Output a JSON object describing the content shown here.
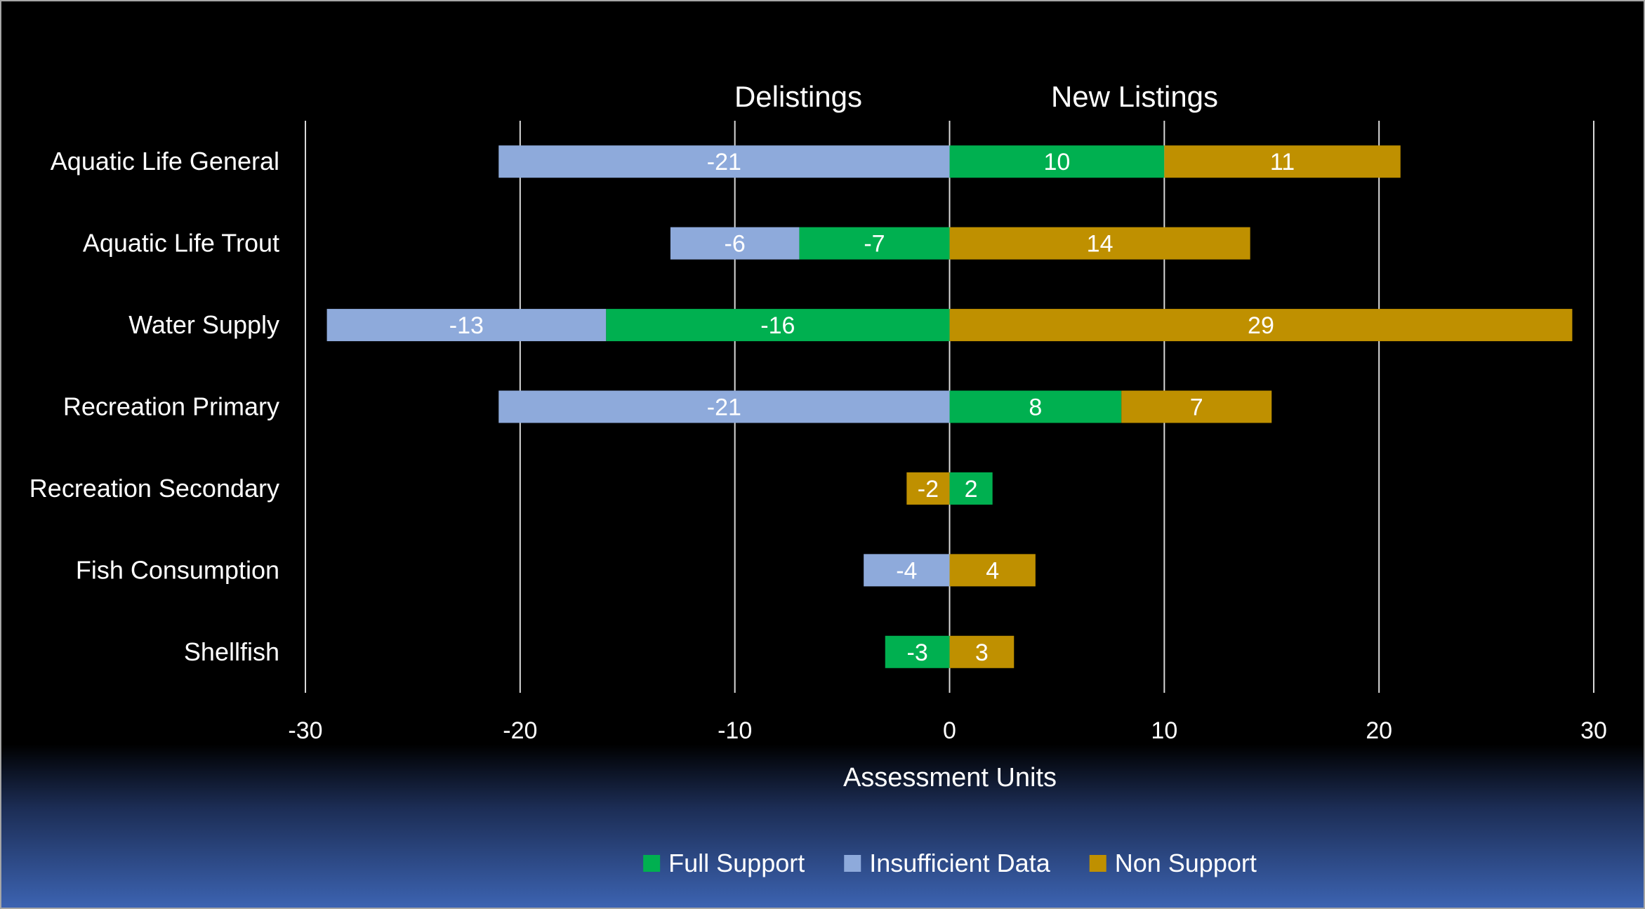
{
  "chart_data": {
    "type": "bar",
    "orientation": "horizontal",
    "stacked": true,
    "categories": [
      "Aquatic Life General",
      "Aquatic Life Trout",
      "Water Supply",
      "Recreation Primary",
      "Recreation Secondary",
      "Fish Consumption",
      "Shellfish"
    ],
    "negative_side_label": "Delistings",
    "positive_side_label": "New Listings",
    "xlabel": "Assessment Units",
    "xlim": [
      -30,
      30
    ],
    "xticks": [
      -30,
      -20,
      -10,
      0,
      10,
      20,
      30
    ],
    "grid": true,
    "legend_position": "bottom",
    "series": [
      {
        "name": "Full Support",
        "color": "#00b050",
        "values": [
          10,
          -7,
          -16,
          8,
          2,
          null,
          -3
        ]
      },
      {
        "name": "Insufficient Data",
        "color": "#8eaadb",
        "values": [
          -21,
          -6,
          -13,
          -21,
          null,
          -4,
          null
        ]
      },
      {
        "name": "Non Support",
        "color": "#bf9000",
        "values": [
          11,
          14,
          29,
          7,
          -2,
          4,
          3
        ]
      }
    ]
  }
}
